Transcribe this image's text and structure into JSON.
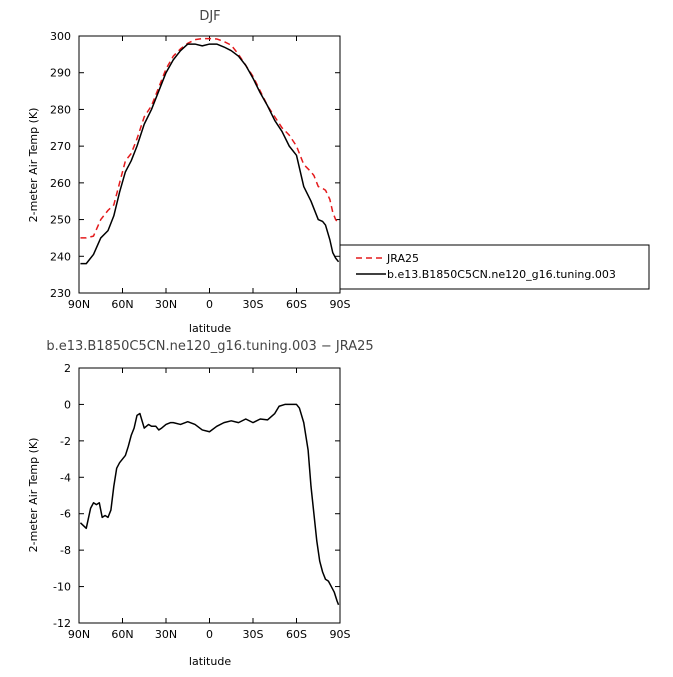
{
  "chart_data": [
    {
      "type": "line",
      "title": "DJF",
      "xlabel": "latitude",
      "ylabel": "2-meter Air Temp (K)",
      "xlim": [
        90,
        -90
      ],
      "ylim": [
        230,
        300
      ],
      "x_tick_values": [
        90,
        60,
        30,
        0,
        -30,
        -60,
        -90
      ],
      "x_tick_labels": [
        "90N",
        "60N",
        "30N",
        "0",
        "30S",
        "60S",
        "90S"
      ],
      "y_ticks": [
        230,
        240,
        250,
        260,
        270,
        280,
        290,
        300
      ],
      "grid": false,
      "legend_position": "right",
      "series": [
        {
          "name": "JRA25",
          "color": "#e41a1c",
          "dash": "dashed",
          "x": [
            89,
            85,
            80,
            75,
            70,
            66,
            62,
            58,
            54,
            50,
            45,
            40,
            35,
            30,
            25,
            20,
            15,
            10,
            5,
            0,
            -5,
            -10,
            -15,
            -20,
            -25,
            -30,
            -35,
            -40,
            -45,
            -50,
            -55,
            -60,
            -65,
            -70,
            -72,
            -75,
            -78,
            -80,
            -83,
            -85,
            -87,
            -89
          ],
          "y": [
            245,
            245,
            245.5,
            250,
            252.5,
            254,
            260,
            266,
            268,
            272,
            278,
            281,
            286,
            291,
            294.5,
            296.5,
            298,
            299,
            299.3,
            299.3,
            299.2,
            298.5,
            297.5,
            295,
            292,
            289,
            285,
            281,
            278,
            275,
            273,
            270,
            265,
            263,
            262,
            259,
            258.5,
            258,
            255.5,
            252,
            250,
            249
          ]
        },
        {
          "name": "b.e13.B1850C5CN.ne120_g16.tuning.003",
          "color": "#000000",
          "dash": "solid",
          "x": [
            89,
            85,
            80,
            75,
            70,
            66,
            62,
            58,
            54,
            50,
            45,
            40,
            35,
            30,
            25,
            20,
            15,
            10,
            5,
            0,
            -5,
            -10,
            -15,
            -20,
            -25,
            -30,
            -35,
            -40,
            -45,
            -50,
            -55,
            -60,
            -65,
            -70,
            -72,
            -75,
            -78,
            -80,
            -83,
            -85,
            -87,
            -89
          ],
          "y": [
            238,
            238,
            240.5,
            245,
            247,
            251,
            257.5,
            263,
            266,
            270,
            276,
            280,
            285,
            290,
            293.5,
            296,
            297.8,
            297.8,
            297.3,
            297.8,
            297.8,
            297,
            296,
            294.5,
            292,
            288.5,
            284.5,
            281,
            277,
            274,
            270,
            267.5,
            259,
            255,
            253,
            250,
            249.5,
            248.5,
            244.5,
            241,
            239.5,
            238.5
          ]
        }
      ]
    },
    {
      "type": "line",
      "title": "b.e13.B1850C5CN.ne120_g16.tuning.003 − JRA25",
      "xlabel": "latitude",
      "ylabel": "2-meter Air Temp (K)",
      "xlim": [
        90,
        -90
      ],
      "ylim": [
        -12,
        2
      ],
      "x_tick_values": [
        90,
        60,
        30,
        0,
        -30,
        -60,
        -90
      ],
      "x_tick_labels": [
        "90N",
        "60N",
        "30N",
        "0",
        "30S",
        "60S",
        "90S"
      ],
      "y_ticks": [
        2,
        0,
        -2,
        -4,
        -6,
        -8,
        -10,
        -12
      ],
      "grid": false,
      "series": [
        {
          "color": "#000000",
          "dash": "solid",
          "x": [
            89,
            85,
            82,
            80,
            78,
            76,
            74,
            72,
            70,
            68,
            66,
            64,
            62,
            60,
            58,
            56,
            54,
            52,
            50,
            48,
            45,
            42,
            40,
            37,
            35,
            33,
            30,
            27,
            25,
            20,
            15,
            10,
            5,
            0,
            -5,
            -10,
            -15,
            -20,
            -25,
            -30,
            -35,
            -40,
            -45,
            -48,
            -52,
            -55,
            -58,
            -60,
            -62,
            -65,
            -68,
            -70,
            -72,
            -74,
            -76,
            -78,
            -80,
            -82,
            -84,
            -86,
            -88,
            -89
          ],
          "y": [
            -6.5,
            -6.8,
            -5.7,
            -5.4,
            -5.5,
            -5.4,
            -6.2,
            -6.1,
            -6.2,
            -5.8,
            -4.5,
            -3.5,
            -3.2,
            -3.0,
            -2.8,
            -2.3,
            -1.7,
            -1.3,
            -0.6,
            -0.5,
            -1.3,
            -1.1,
            -1.2,
            -1.2,
            -1.4,
            -1.3,
            -1.1,
            -1.0,
            -1.0,
            -1.1,
            -0.95,
            -1.1,
            -1.4,
            -1.5,
            -1.2,
            -1.0,
            -0.9,
            -1.0,
            -0.8,
            -1.0,
            -0.8,
            -0.85,
            -0.5,
            -0.1,
            0,
            0,
            0,
            0,
            -0.2,
            -1.0,
            -2.5,
            -4.5,
            -6.0,
            -7.5,
            -8.6,
            -9.2,
            -9.6,
            -9.7,
            -10.0,
            -10.3,
            -10.8,
            -11.0
          ]
        }
      ]
    }
  ]
}
